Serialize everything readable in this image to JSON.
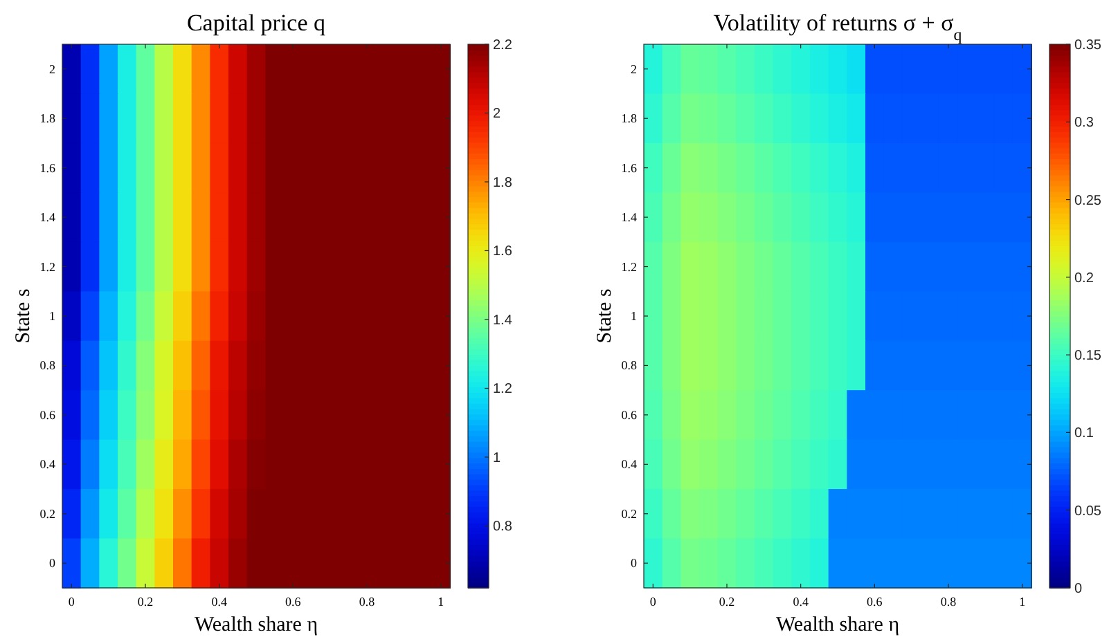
{
  "chart_data": [
    {
      "type": "heatmap",
      "title": "Capital price q",
      "xlabel": "Wealth share η",
      "ylabel": "State s",
      "categories": [
        "0",
        null,
        null,
        null,
        "0.2",
        null,
        null,
        null,
        "0.4",
        null,
        null,
        null,
        "0.6",
        null,
        null,
        null,
        "0.8",
        null,
        null,
        null,
        "1"
      ],
      "y_categories": [
        "2",
        "1.8",
        "1.6",
        "1.4",
        "1.2",
        "1",
        "0.8",
        "0.6",
        "0.4",
        "0.2",
        "0"
      ],
      "clim": [
        0.62,
        2.2
      ],
      "cticks": [
        0.8,
        1,
        1.2,
        1.4,
        1.6,
        1.8,
        2,
        2.2
      ],
      "cells": [
        [
          0.7,
          0.88,
          1.07,
          1.23,
          1.36,
          1.5,
          1.64,
          1.79,
          1.95,
          2.07,
          2.15,
          2.2,
          2.2,
          2.2,
          2.2,
          2.2,
          2.2,
          2.2,
          2.2,
          2.2,
          2.2
        ],
        [
          0.7,
          0.88,
          1.07,
          1.23,
          1.36,
          1.5,
          1.64,
          1.79,
          1.95,
          2.07,
          2.15,
          2.2,
          2.2,
          2.2,
          2.2,
          2.2,
          2.2,
          2.2,
          2.2,
          2.2,
          2.2
        ],
        [
          0.7,
          0.88,
          1.07,
          1.23,
          1.36,
          1.5,
          1.64,
          1.79,
          1.95,
          2.07,
          2.15,
          2.2,
          2.2,
          2.2,
          2.2,
          2.2,
          2.2,
          2.2,
          2.2,
          2.2,
          2.2
        ],
        [
          0.7,
          0.88,
          1.07,
          1.23,
          1.36,
          1.5,
          1.64,
          1.79,
          1.95,
          2.07,
          2.15,
          2.2,
          2.2,
          2.2,
          2.2,
          2.2,
          2.2,
          2.2,
          2.2,
          2.2,
          2.2
        ],
        [
          0.7,
          0.88,
          1.07,
          1.23,
          1.36,
          1.5,
          1.64,
          1.79,
          1.95,
          2.07,
          2.15,
          2.2,
          2.2,
          2.2,
          2.2,
          2.2,
          2.2,
          2.2,
          2.2,
          2.2,
          2.2
        ],
        [
          0.73,
          0.92,
          1.1,
          1.25,
          1.39,
          1.53,
          1.67,
          1.82,
          1.97,
          2.08,
          2.16,
          2.2,
          2.2,
          2.2,
          2.2,
          2.2,
          2.2,
          2.2,
          2.2,
          2.2,
          2.2
        ],
        [
          0.77,
          0.96,
          1.13,
          1.28,
          1.42,
          1.56,
          1.7,
          1.85,
          2.0,
          2.1,
          2.17,
          2.2,
          2.2,
          2.2,
          2.2,
          2.2,
          2.2,
          2.2,
          2.2,
          2.2,
          2.2
        ],
        [
          0.79,
          0.98,
          1.15,
          1.3,
          1.43,
          1.57,
          1.72,
          1.87,
          2.01,
          2.11,
          2.18,
          2.2,
          2.2,
          2.2,
          2.2,
          2.2,
          2.2,
          2.2,
          2.2,
          2.2,
          2.2
        ],
        [
          0.82,
          1.01,
          1.18,
          1.32,
          1.46,
          1.6,
          1.74,
          1.9,
          2.03,
          2.13,
          2.19,
          2.2,
          2.2,
          2.2,
          2.2,
          2.2,
          2.2,
          2.2,
          2.2,
          2.2,
          2.2
        ],
        [
          0.86,
          1.05,
          1.21,
          1.35,
          1.49,
          1.63,
          1.78,
          1.93,
          2.06,
          2.14,
          2.2,
          2.2,
          2.2,
          2.2,
          2.2,
          2.2,
          2.2,
          2.2,
          2.2,
          2.2,
          2.2
        ],
        [
          0.91,
          1.09,
          1.26,
          1.39,
          1.53,
          1.67,
          1.82,
          1.98,
          2.08,
          2.16,
          2.2,
          2.2,
          2.2,
          2.2,
          2.2,
          2.2,
          2.2,
          2.2,
          2.2,
          2.2,
          2.2
        ]
      ]
    },
    {
      "type": "heatmap",
      "title": "Volatility of returns σ + σ$_{q}$",
      "xlabel": "Wealth share η",
      "ylabel": "State s",
      "categories": [
        "0",
        null,
        null,
        null,
        "0.2",
        null,
        null,
        null,
        "0.4",
        null,
        null,
        null,
        "0.6",
        null,
        null,
        null,
        "0.8",
        null,
        null,
        null,
        "1"
      ],
      "y_categories": [
        "2",
        "1.8",
        "1.6",
        "1.4",
        "1.2",
        "1",
        "0.8",
        "0.6",
        "0.4",
        "0.2",
        "0"
      ],
      "clim": [
        0,
        0.35
      ],
      "cticks": [
        0,
        0.05,
        0.1,
        0.15,
        0.2,
        0.25,
        0.3,
        0.35
      ],
      "cells": [
        [
          0.14,
          0.155,
          0.166,
          0.164,
          0.16,
          0.155,
          0.15,
          0.145,
          0.14,
          0.135,
          0.13,
          0.125,
          0.07,
          0.07,
          0.07,
          0.07,
          0.07,
          0.07,
          0.07,
          0.07,
          0.07
        ],
        [
          0.145,
          0.16,
          0.171,
          0.169,
          0.165,
          0.16,
          0.155,
          0.15,
          0.145,
          0.14,
          0.135,
          0.13,
          0.072,
          0.072,
          0.072,
          0.072,
          0.072,
          0.072,
          0.072,
          0.072,
          0.072
        ],
        [
          0.152,
          0.167,
          0.178,
          0.176,
          0.172,
          0.167,
          0.162,
          0.157,
          0.152,
          0.147,
          0.142,
          0.137,
          0.074,
          0.074,
          0.074,
          0.074,
          0.074,
          0.074,
          0.074,
          0.074,
          0.074
        ],
        [
          0.156,
          0.171,
          0.182,
          0.18,
          0.176,
          0.171,
          0.166,
          0.161,
          0.156,
          0.151,
          0.146,
          0.141,
          0.076,
          0.076,
          0.076,
          0.076,
          0.076,
          0.076,
          0.076,
          0.076,
          0.076
        ],
        [
          0.16,
          0.175,
          0.186,
          0.184,
          0.18,
          0.175,
          0.17,
          0.165,
          0.16,
          0.155,
          0.15,
          0.145,
          0.078,
          0.078,
          0.078,
          0.078,
          0.078,
          0.078,
          0.078,
          0.078,
          0.078
        ],
        [
          0.16,
          0.175,
          0.186,
          0.184,
          0.18,
          0.175,
          0.17,
          0.165,
          0.16,
          0.155,
          0.15,
          0.145,
          0.08,
          0.08,
          0.08,
          0.08,
          0.08,
          0.08,
          0.08,
          0.08,
          0.08
        ],
        [
          0.16,
          0.175,
          0.186,
          0.184,
          0.18,
          0.175,
          0.17,
          0.165,
          0.16,
          0.155,
          0.15,
          0.145,
          0.082,
          0.082,
          0.082,
          0.082,
          0.082,
          0.082,
          0.082,
          0.082,
          0.082
        ],
        [
          0.158,
          0.173,
          0.184,
          0.182,
          0.178,
          0.173,
          0.168,
          0.163,
          0.158,
          0.153,
          0.148,
          0.084,
          0.084,
          0.084,
          0.084,
          0.084,
          0.084,
          0.084,
          0.084,
          0.084,
          0.084
        ],
        [
          0.155,
          0.17,
          0.181,
          0.179,
          0.175,
          0.17,
          0.165,
          0.16,
          0.155,
          0.15,
          0.145,
          0.086,
          0.086,
          0.086,
          0.086,
          0.086,
          0.086,
          0.086,
          0.086,
          0.086,
          0.086
        ],
        [
          0.15,
          0.165,
          0.176,
          0.174,
          0.17,
          0.165,
          0.16,
          0.155,
          0.15,
          0.145,
          0.088,
          0.088,
          0.088,
          0.088,
          0.088,
          0.088,
          0.088,
          0.088,
          0.088,
          0.088,
          0.088
        ],
        [
          0.145,
          0.16,
          0.171,
          0.169,
          0.165,
          0.16,
          0.155,
          0.15,
          0.145,
          0.14,
          0.09,
          0.09,
          0.09,
          0.09,
          0.09,
          0.09,
          0.09,
          0.09,
          0.09,
          0.09,
          0.09
        ]
      ]
    }
  ]
}
